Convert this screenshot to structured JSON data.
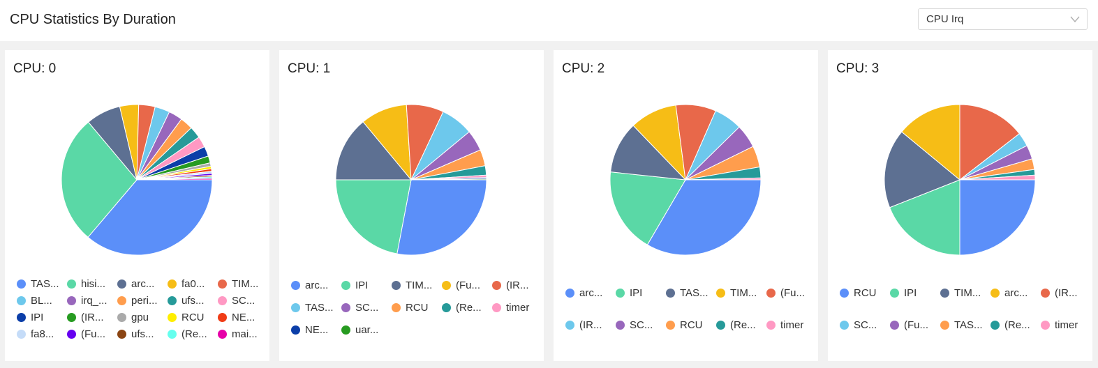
{
  "header": {
    "title": "CPU Statistics By Duration"
  },
  "select": {
    "value": "CPU Irq",
    "icon": "chevron-down-icon"
  },
  "cards": [
    {
      "title": "CPU: 0",
      "slices": [
        {
          "value": 34.0,
          "color": "#5b8ff9"
        },
        {
          "value": 26.0,
          "color": "#5ad8a6"
        },
        {
          "value": 7.0,
          "color": "#5d7092"
        },
        {
          "value": 3.8,
          "color": "#f6bd16"
        },
        {
          "value": 3.3,
          "color": "#e8684a"
        },
        {
          "value": 3.0,
          "color": "#6dc8ec"
        },
        {
          "value": 2.8,
          "color": "#9867bc"
        },
        {
          "value": 2.6,
          "color": "#ff9d4d"
        },
        {
          "value": 2.4,
          "color": "#269a99"
        },
        {
          "value": 2.2,
          "color": "#ff99c3"
        },
        {
          "value": 2.0,
          "color": "#0b3ea8"
        },
        {
          "value": 1.4,
          "color": "#279b21"
        },
        {
          "value": 0.7,
          "color": "#aaaaaa"
        },
        {
          "value": 0.5,
          "color": "#ffee00"
        },
        {
          "value": 0.5,
          "color": "#f03c16"
        },
        {
          "value": 0.4,
          "color": "#c5dcf8"
        },
        {
          "value": 0.4,
          "color": "#6600f0"
        },
        {
          "value": 0.3,
          "color": "#8b4513"
        },
        {
          "value": 0.3,
          "color": "#66ffee"
        },
        {
          "value": 0.3,
          "color": "#e600a8"
        }
      ],
      "legend": [
        {
          "label": "TAS...",
          "color": "#5b8ff9"
        },
        {
          "label": "hisi...",
          "color": "#5ad8a6"
        },
        {
          "label": "arc...",
          "color": "#5d7092"
        },
        {
          "label": "fa0...",
          "color": "#f6bd16"
        },
        {
          "label": "TIM...",
          "color": "#e8684a"
        },
        {
          "label": "BL...",
          "color": "#6dc8ec"
        },
        {
          "label": "irq_...",
          "color": "#9867bc"
        },
        {
          "label": "peri...",
          "color": "#ff9d4d"
        },
        {
          "label": "ufs...",
          "color": "#269a99"
        },
        {
          "label": "SC...",
          "color": "#ff99c3"
        },
        {
          "label": "IPI",
          "color": "#0b3ea8"
        },
        {
          "label": "(IR...",
          "color": "#279b21"
        },
        {
          "label": "gpu",
          "color": "#aaaaaa"
        },
        {
          "label": "RCU",
          "color": "#ffee00"
        },
        {
          "label": "NE...",
          "color": "#f03c16"
        },
        {
          "label": "fa8...",
          "color": "#c5dcf8"
        },
        {
          "label": "(Fu...",
          "color": "#6600f0"
        },
        {
          "label": "ufs...",
          "color": "#8b4513"
        },
        {
          "label": "(Re...",
          "color": "#66ffee"
        },
        {
          "label": "mai...",
          "color": "#e600a8"
        }
      ]
    },
    {
      "title": "CPU: 1",
      "slices": [
        {
          "value": 28.0,
          "color": "#5b8ff9"
        },
        {
          "value": 22.0,
          "color": "#5ad8a6"
        },
        {
          "value": 14.0,
          "color": "#5d7092"
        },
        {
          "value": 10.0,
          "color": "#f6bd16"
        },
        {
          "value": 8.0,
          "color": "#e8684a"
        },
        {
          "value": 7.0,
          "color": "#6dc8ec"
        },
        {
          "value": 4.5,
          "color": "#9867bc"
        },
        {
          "value": 3.5,
          "color": "#ff9d4d"
        },
        {
          "value": 2.0,
          "color": "#269a99"
        },
        {
          "value": 0.5,
          "color": "#ff99c3"
        },
        {
          "value": 0.3,
          "color": "#0b3ea8"
        },
        {
          "value": 0.2,
          "color": "#279b21"
        }
      ],
      "legend": [
        {
          "label": "arc...",
          "color": "#5b8ff9"
        },
        {
          "label": "IPI",
          "color": "#5ad8a6"
        },
        {
          "label": "TIM...",
          "color": "#5d7092"
        },
        {
          "label": "(Fu...",
          "color": "#f6bd16"
        },
        {
          "label": "(IR...",
          "color": "#e8684a"
        },
        {
          "label": "TAS...",
          "color": "#6dc8ec"
        },
        {
          "label": "SC...",
          "color": "#9867bc"
        },
        {
          "label": "RCU",
          "color": "#ff9d4d"
        },
        {
          "label": "(Re...",
          "color": "#269a99"
        },
        {
          "label": "timer",
          "color": "#ff99c3"
        },
        {
          "label": "NE...",
          "color": "#0b3ea8"
        },
        {
          "label": "uar...",
          "color": "#279b21"
        }
      ]
    },
    {
      "title": "CPU: 2",
      "slices": [
        {
          "value": 33.0,
          "color": "#5b8ff9"
        },
        {
          "value": 18.0,
          "color": "#5ad8a6"
        },
        {
          "value": 11.0,
          "color": "#5d7092"
        },
        {
          "value": 10.0,
          "color": "#f6bd16"
        },
        {
          "value": 8.5,
          "color": "#e8684a"
        },
        {
          "value": 6.0,
          "color": "#6dc8ec"
        },
        {
          "value": 5.0,
          "color": "#9867bc"
        },
        {
          "value": 4.5,
          "color": "#ff9d4d"
        },
        {
          "value": 2.3,
          "color": "#269a99"
        },
        {
          "value": 0.4,
          "color": "#ff99c3"
        }
      ],
      "legend": [
        {
          "label": "arc...",
          "color": "#5b8ff9"
        },
        {
          "label": "IPI",
          "color": "#5ad8a6"
        },
        {
          "label": "TAS...",
          "color": "#5d7092"
        },
        {
          "label": "TIM...",
          "color": "#f6bd16"
        },
        {
          "label": "(Fu...",
          "color": "#e8684a"
        },
        {
          "label": "(IR...",
          "color": "#6dc8ec"
        },
        {
          "label": "SC...",
          "color": "#9867bc"
        },
        {
          "label": "RCU",
          "color": "#ff9d4d"
        },
        {
          "label": "(Re...",
          "color": "#269a99"
        },
        {
          "label": "timer",
          "color": "#ff99c3"
        }
      ]
    },
    {
      "title": "CPU: 3",
      "slices": [
        {
          "value": 25.0,
          "color": "#5b8ff9"
        },
        {
          "value": 19.0,
          "color": "#5ad8a6"
        },
        {
          "value": 17.0,
          "color": "#5d7092"
        },
        {
          "value": 14.0,
          "color": "#f6bd16"
        },
        {
          "value": 14.5,
          "color": "#e8684a"
        },
        {
          "value": 3.0,
          "color": "#6dc8ec"
        },
        {
          "value": 3.0,
          "color": "#9867bc"
        },
        {
          "value": 2.3,
          "color": "#ff9d4d"
        },
        {
          "value": 1.2,
          "color": "#269a99"
        },
        {
          "value": 1.0,
          "color": "#ff99c3"
        }
      ],
      "legend": [
        {
          "label": "RCU",
          "color": "#5b8ff9"
        },
        {
          "label": "IPI",
          "color": "#5ad8a6"
        },
        {
          "label": "TIM...",
          "color": "#5d7092"
        },
        {
          "label": "arc...",
          "color": "#f6bd16"
        },
        {
          "label": "(IR...",
          "color": "#e8684a"
        },
        {
          "label": "SC...",
          "color": "#6dc8ec"
        },
        {
          "label": "(Fu...",
          "color": "#9867bc"
        },
        {
          "label": "TAS...",
          "color": "#ff9d4d"
        },
        {
          "label": "(Re...",
          "color": "#269a99"
        },
        {
          "label": "timer",
          "color": "#ff99c3"
        }
      ]
    }
  ]
}
